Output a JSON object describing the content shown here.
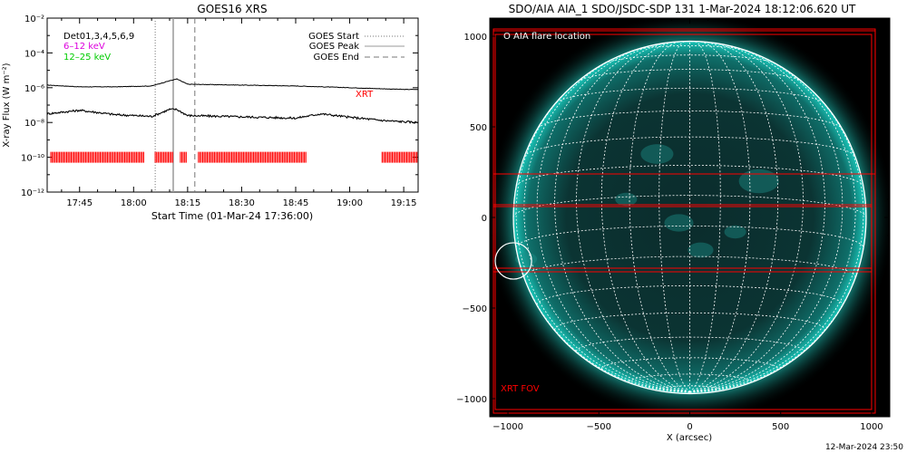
{
  "footer_timestamp": "12-Mar-2024 23:50",
  "colors": {
    "xrt": "#ff0000",
    "disk": "#0d9a92",
    "grid": "#ffffff",
    "band_6_12": "#dd00dd",
    "band_12_25": "#00cc00"
  },
  "chart_data": [
    {
      "type": "line",
      "title": "GOES16 XRS",
      "xlabel": "Start Time (01-Mar-24 17:36:00)",
      "ylabel": "X-ray Flux (W m⁻²)",
      "y_scale": "log",
      "ylim": [
        "1e-12",
        "1e-2"
      ],
      "y_tick_labels": [
        "10⁻¹²",
        "10⁻¹⁰",
        "10⁻⁸",
        "10⁻⁶",
        "10⁻⁴",
        "10⁻²"
      ],
      "y_ticks": [
        -12,
        -10,
        -8,
        -6,
        -4,
        -2
      ],
      "xlim": [
        "17:36",
        "19:19"
      ],
      "x_ticks": [
        "17:45",
        "18:00",
        "18:15",
        "18:30",
        "18:45",
        "19:00",
        "19:15"
      ],
      "top_labels": [
        "Det01,3,4,5,6,9",
        "6–12 keV",
        "12–25 keV"
      ],
      "legend": [
        "GOES Start",
        "GOES Peak",
        "GOES End"
      ],
      "legend_placement": "top-right",
      "markers": {
        "goes_start": "18:06",
        "goes_peak": "18:11",
        "goes_end": "18:17"
      },
      "series": [
        {
          "name": "",
          "x": [
            "17:36",
            "17:45",
            "17:55",
            "18:05",
            "18:10",
            "18:12",
            "18:15",
            "18:30",
            "18:45",
            "19:00",
            "19:15",
            "19:19"
          ],
          "log_values": [
            -5.85,
            -5.95,
            -5.95,
            -5.9,
            -5.6,
            -5.5,
            -5.8,
            -5.85,
            -5.9,
            -6.0,
            -6.1,
            -6.1
          ]
        },
        {
          "name": "",
          "x": [
            "17:36",
            "17:45",
            "17:55",
            "18:00",
            "18:05",
            "18:10",
            "18:12",
            "18:15",
            "18:25",
            "18:35",
            "18:45",
            "18:52",
            "19:00",
            "19:10",
            "19:19"
          ],
          "log_values": [
            -7.5,
            -7.3,
            -7.55,
            -7.6,
            -7.65,
            -7.25,
            -7.25,
            -7.6,
            -7.65,
            -7.7,
            -7.75,
            -7.5,
            -7.7,
            -7.9,
            -8.0
          ]
        }
      ],
      "xrt_label": "XRT",
      "xrt_bar_level": -10,
      "xrt_observations": [
        {
          "start": "17:37",
          "end": "18:03"
        },
        {
          "start": "18:06",
          "end": "18:11"
        },
        {
          "start": "18:13",
          "end": "18:15"
        },
        {
          "start": "18:18",
          "end": "18:48"
        },
        {
          "start": "19:09",
          "end": "19:19"
        }
      ]
    },
    {
      "type": "image",
      "title": "SDO/AIA AIA_1 SDO/JSDC-SDP 131  1-Mar-2024 18:12:06.620 UT",
      "xlabel": "X (arcsec)",
      "ylabel": "",
      "xlim": [
        -1100,
        1100
      ],
      "ylim": [
        -1100,
        1100
      ],
      "x_ticks": [
        -1000,
        -500,
        0,
        500,
        1000
      ],
      "y_ticks": [
        -1000,
        -500,
        0,
        500,
        1000
      ],
      "solar_radius_arcsec": 970,
      "flare_location_label": "O AIA flare location",
      "flare_location": {
        "x": -970,
        "y": -240,
        "radius": 100
      },
      "xrt_fov_label": "XRT FOV",
      "xrt_fov_boxes": [
        {
          "x0": -1080,
          "x1": 1020,
          "y0": -1080,
          "y1": 1040
        },
        {
          "x0": -1070,
          "x1": 1000,
          "y0": -1060,
          "y1": 1010
        },
        {
          "x0": -1080,
          "x1": 1020,
          "y0": 240,
          "y1": 1030
        },
        {
          "x0": -1080,
          "x1": 1000,
          "y0": -300,
          "y1": 70
        },
        {
          "x0": -1080,
          "x1": 1000,
          "y0": -280,
          "y1": 60
        }
      ]
    }
  ]
}
